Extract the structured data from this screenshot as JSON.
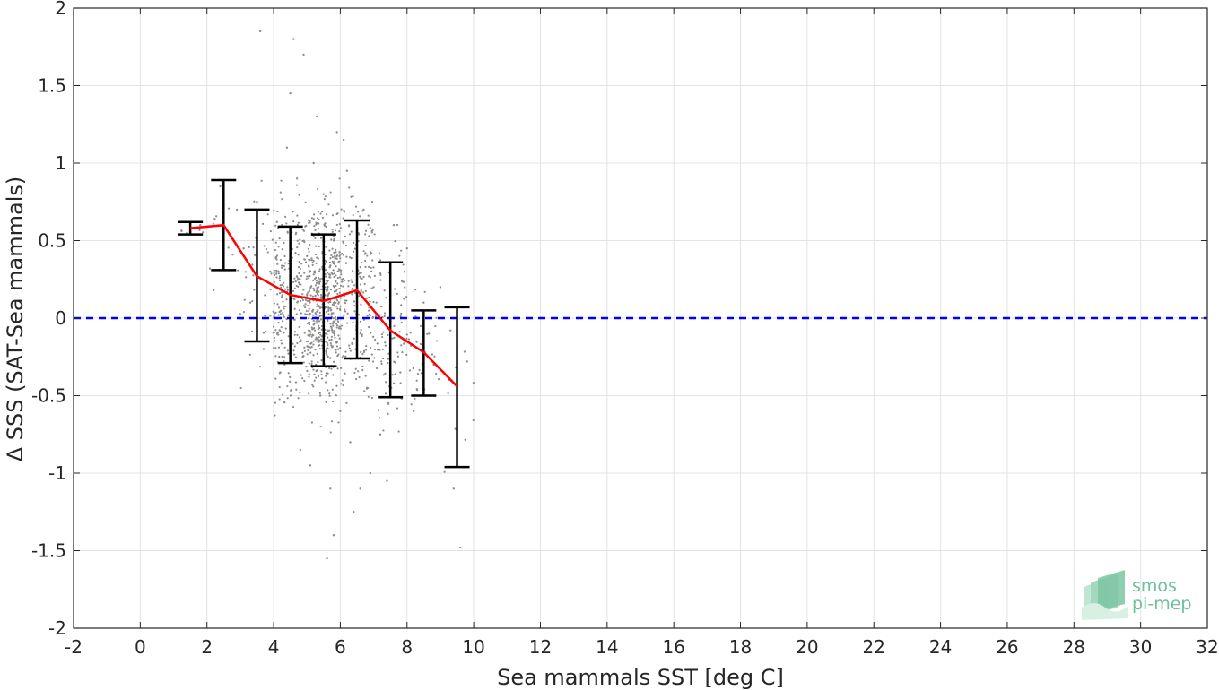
{
  "chart_data": {
    "type": "scatter",
    "title": "",
    "xlabel": "Sea mammals SST [deg C]",
    "ylabel": "Δ SSS (SAT-Sea mammals)",
    "xlim": [
      -2,
      32
    ],
    "ylim": [
      -2,
      2
    ],
    "xticks": [
      -2,
      0,
      2,
      4,
      6,
      8,
      10,
      12,
      14,
      16,
      18,
      20,
      22,
      24,
      26,
      28,
      30,
      32
    ],
    "yticks": [
      -2,
      -1.5,
      -1,
      -0.5,
      0,
      0.5,
      1,
      1.5,
      2
    ],
    "xtick_labels": [
      "-2",
      "0",
      "2",
      "4",
      "6",
      "8",
      "10",
      "12",
      "14",
      "16",
      "18",
      "20",
      "22",
      "24",
      "26",
      "28",
      "30",
      "32"
    ],
    "ytick_labels": [
      "-2",
      "-1.5",
      "-1",
      "-0.5",
      "0",
      "0.5",
      "1",
      "1.5",
      "2"
    ],
    "grid": true,
    "series": [
      {
        "kind": "binned-mean",
        "color": "#ff0000",
        "x": [
          1.5,
          2.5,
          3.5,
          4.5,
          5.5,
          6.5,
          7.5,
          8.5,
          9.5
        ],
        "y": [
          0.58,
          0.6,
          0.27,
          0.15,
          0.11,
          0.18,
          -0.08,
          -0.22,
          -0.44
        ],
        "error_low": [
          0.54,
          0.31,
          -0.15,
          -0.29,
          -0.31,
          -0.26,
          -0.51,
          -0.5,
          -0.96
        ],
        "error_high": [
          0.62,
          0.89,
          0.7,
          0.59,
          0.54,
          0.63,
          0.36,
          0.05,
          0.07
        ],
        "error_color": "#000000"
      },
      {
        "kind": "reference-line",
        "color": "#0000ff",
        "style": "dashed",
        "y": 0
      },
      {
        "kind": "scatter-cloud",
        "color": "#8c8c8c",
        "description_points": [
          [
            1.4,
            0.55
          ],
          [
            1.8,
            0.6
          ],
          [
            2.2,
            0.18
          ],
          [
            2.4,
            0.85
          ],
          [
            2.9,
            0.7
          ],
          [
            3.1,
            0.45
          ],
          [
            3.3,
            0.1
          ],
          [
            3.5,
            0.75
          ],
          [
            3.7,
            -0.2
          ],
          [
            3.9,
            0.3
          ],
          [
            4.1,
            0.62
          ],
          [
            4.2,
            -0.35
          ],
          [
            4.4,
            1.1
          ],
          [
            4.5,
            1.45
          ],
          [
            4.6,
            1.8
          ],
          [
            4.7,
            0.9
          ],
          [
            4.8,
            -0.85
          ],
          [
            4.9,
            1.7
          ],
          [
            5.0,
            0.4
          ],
          [
            5.1,
            -0.95
          ],
          [
            5.2,
            1.0
          ],
          [
            5.3,
            1.3
          ],
          [
            5.4,
            -0.5
          ],
          [
            5.5,
            0.8
          ],
          [
            5.6,
            -1.55
          ],
          [
            5.7,
            -1.1
          ],
          [
            5.8,
            -1.4
          ],
          [
            5.9,
            1.2
          ],
          [
            6.0,
            -0.6
          ],
          [
            6.1,
            1.15
          ],
          [
            6.2,
            0.95
          ],
          [
            6.3,
            -0.8
          ],
          [
            6.4,
            -1.25
          ],
          [
            6.5,
            0.55
          ],
          [
            6.6,
            -1.1
          ],
          [
            6.7,
            0.7
          ],
          [
            6.8,
            -0.45
          ],
          [
            6.9,
            -1.0
          ],
          [
            7.0,
            0.2
          ],
          [
            7.2,
            -0.75
          ],
          [
            7.4,
            -1.05
          ],
          [
            7.6,
            0.6
          ],
          [
            7.8,
            -0.35
          ],
          [
            8.0,
            0.45
          ],
          [
            8.2,
            -0.6
          ],
          [
            8.5,
            0.1
          ],
          [
            8.8,
            -0.3
          ],
          [
            9.0,
            0.2
          ],
          [
            9.4,
            -1.1
          ],
          [
            9.6,
            -1.48
          ],
          [
            9.8,
            -0.28
          ],
          [
            3.6,
            1.85
          ]
        ]
      }
    ],
    "logo": {
      "line1": "smos",
      "line2": "pi-mep",
      "color": "#6fbf9a"
    }
  }
}
